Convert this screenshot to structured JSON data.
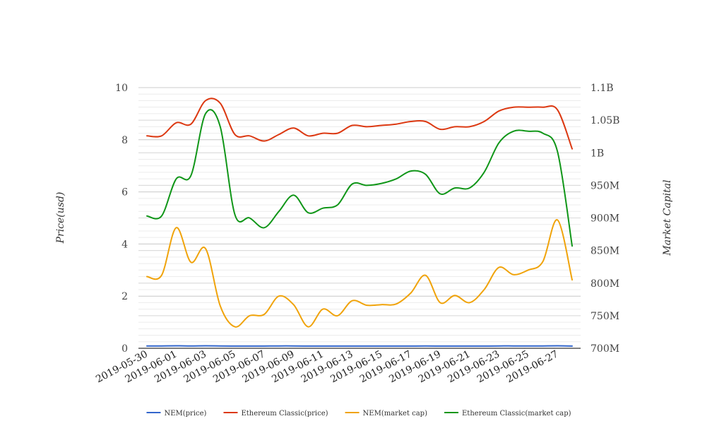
{
  "chart_data": {
    "type": "line",
    "title": "",
    "y_left_label": "Price(usd)",
    "y_right_label": "Market Capital",
    "y_left_ticks": [
      "0",
      "2",
      "4",
      "6",
      "8",
      "10"
    ],
    "y_right_ticks": [
      "700M",
      "750M",
      "800M",
      "850M",
      "900M",
      "950M",
      "1B",
      "1.05B",
      "1.1B"
    ],
    "y_left_range": [
      0,
      10
    ],
    "y_right_range": [
      700000000,
      1100000000
    ],
    "x_ticks": [
      "2019-05-30",
      "2019-06-01",
      "2019-06-03",
      "2019-06-05",
      "2019-06-07",
      "2019-06-09",
      "2019-06-11",
      "2019-06-13",
      "2019-06-15",
      "2019-06-17",
      "2019-06-19",
      "2019-06-21",
      "2019-06-23",
      "2019-06-25",
      "2019-06-27"
    ],
    "x": [
      "2019-05-30",
      "2019-05-31",
      "2019-06-01",
      "2019-06-02",
      "2019-06-03",
      "2019-06-04",
      "2019-06-05",
      "2019-06-06",
      "2019-06-07",
      "2019-06-08",
      "2019-06-09",
      "2019-06-10",
      "2019-06-11",
      "2019-06-12",
      "2019-06-13",
      "2019-06-14",
      "2019-06-15",
      "2019-06-16",
      "2019-06-17",
      "2019-06-18",
      "2019-06-19",
      "2019-06-20",
      "2019-06-21",
      "2019-06-22",
      "2019-06-23",
      "2019-06-24",
      "2019-06-25",
      "2019-06-26",
      "2019-06-27",
      "2019-06-28"
    ],
    "grid": true,
    "legend_position": "bottom",
    "series": [
      {
        "name": "NEM(price)",
        "axis": "left",
        "color": "#3366cc",
        "values": [
          0.09,
          0.09,
          0.095,
          0.09,
          0.095,
          0.09,
          0.085,
          0.085,
          0.085,
          0.09,
          0.09,
          0.085,
          0.085,
          0.085,
          0.085,
          0.085,
          0.085,
          0.085,
          0.085,
          0.09,
          0.085,
          0.085,
          0.085,
          0.085,
          0.09,
          0.09,
          0.09,
          0.09,
          0.095,
          0.085
        ]
      },
      {
        "name": "Ethereum Classic(price)",
        "axis": "left",
        "color": "#dc3912",
        "values": [
          8.15,
          8.15,
          8.65,
          8.6,
          9.5,
          9.4,
          8.2,
          8.15,
          7.95,
          8.2,
          8.45,
          8.15,
          8.25,
          8.25,
          8.55,
          8.5,
          8.55,
          8.6,
          8.7,
          8.7,
          8.4,
          8.5,
          8.5,
          8.7,
          9.1,
          9.25,
          9.25,
          9.25,
          9.15,
          7.65
        ]
      },
      {
        "name": "NEM(market cap)",
        "axis": "right",
        "color": "#f0a30a",
        "values": [
          810000000,
          812000000,
          885000000,
          832000000,
          853000000,
          765000000,
          733000000,
          750000000,
          752000000,
          780000000,
          767000000,
          733000000,
          760000000,
          750000000,
          773000000,
          766000000,
          767000000,
          768000000,
          785000000,
          812000000,
          770000000,
          781000000,
          770000000,
          790000000,
          824000000,
          813000000,
          820000000,
          833000000,
          897000000,
          805000000
        ]
      },
      {
        "name": "Ethereum Classic(market cap)",
        "axis": "right",
        "color": "#109618",
        "values": [
          903000000,
          903000000,
          960000000,
          965000000,
          1060000000,
          1040000000,
          905000000,
          900000000,
          885000000,
          910000000,
          935000000,
          908000000,
          915000000,
          920000000,
          952000000,
          950000000,
          953000000,
          960000000,
          972000000,
          967000000,
          937000000,
          946000000,
          946000000,
          970000000,
          1015000000,
          1033000000,
          1033000000,
          1030000000,
          1002000000,
          857000000
        ]
      }
    ]
  }
}
